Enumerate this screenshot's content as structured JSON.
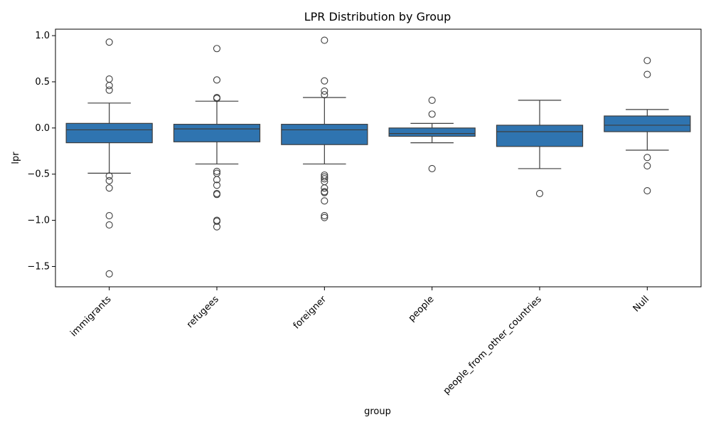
{
  "chart_data": {
    "type": "box",
    "title": "LPR Distribution by Group",
    "xlabel": "group",
    "ylabel": "lpr",
    "ylim": [
      -1.72,
      1.07
    ],
    "yticks": [
      1.0,
      0.5,
      0.0,
      -0.5,
      -1.0,
      -1.5
    ],
    "ytick_labels": [
      "1.0",
      "0.5",
      "0.0",
      "−0.5",
      "−1.0",
      "−1.5"
    ],
    "grid": false,
    "box_color": "#2f74b0",
    "categories": [
      "immigrants",
      "refugees",
      "foreigner",
      "people",
      "people_from_other_countries",
      "Null"
    ],
    "boxes": [
      {
        "whisker_low": -0.49,
        "q1": -0.16,
        "median": -0.02,
        "q3": 0.05,
        "whisker_high": 0.27,
        "outliers": [
          0.93,
          0.53,
          0.46,
          0.41,
          -0.52,
          -0.57,
          -0.65,
          -0.95,
          -1.05,
          -1.58
        ]
      },
      {
        "whisker_low": -0.39,
        "q1": -0.15,
        "median": -0.01,
        "q3": 0.04,
        "whisker_high": 0.29,
        "outliers": [
          0.86,
          0.52,
          0.33,
          0.32,
          -0.47,
          -0.49,
          -0.56,
          -0.62,
          -0.71,
          -0.72,
          -1.0,
          -1.01,
          -1.07
        ]
      },
      {
        "whisker_low": -0.39,
        "q1": -0.18,
        "median": -0.02,
        "q3": 0.04,
        "whisker_high": 0.33,
        "outliers": [
          0.95,
          0.51,
          0.4,
          0.36,
          -0.51,
          -0.53,
          -0.55,
          -0.58,
          -0.65,
          -0.69,
          -0.7,
          -0.79,
          -0.95,
          -0.97
        ]
      },
      {
        "whisker_low": -0.16,
        "q1": -0.09,
        "median": -0.06,
        "q3": 0.0,
        "whisker_high": 0.05,
        "outliers": [
          0.3,
          0.15,
          -0.44
        ]
      },
      {
        "whisker_low": -0.44,
        "q1": -0.2,
        "median": -0.04,
        "q3": 0.03,
        "whisker_high": 0.3,
        "outliers": [
          -0.71
        ]
      },
      {
        "whisker_low": -0.24,
        "q1": -0.04,
        "median": 0.03,
        "q3": 0.13,
        "whisker_high": 0.2,
        "outliers": [
          0.73,
          0.58,
          -0.32,
          -0.41,
          -0.68
        ]
      }
    ]
  }
}
